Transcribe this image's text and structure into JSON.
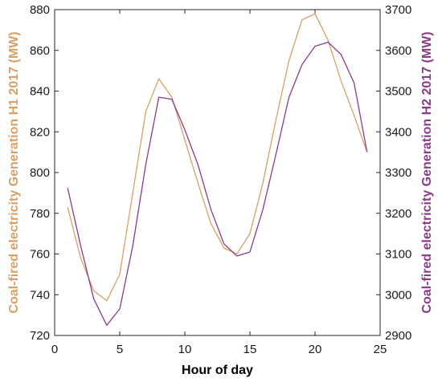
{
  "chart_data": {
    "type": "line",
    "xlabel": "Hour of day",
    "ylabel_left": "Coal-fired electricity Generation H1 2017 (MW)",
    "ylabel_right": "Coal-fired electricity Generation H2 2017 (MW)",
    "xlim": [
      0,
      25
    ],
    "ylim_left": [
      720,
      880
    ],
    "ylim_right": [
      2900,
      3700
    ],
    "xticks": [
      0,
      5,
      10,
      15,
      20,
      25
    ],
    "yticks_left": [
      720,
      740,
      760,
      780,
      800,
      820,
      840,
      860,
      880
    ],
    "yticks_right": [
      2900,
      3000,
      3100,
      3200,
      3300,
      3400,
      3500,
      3600,
      3700
    ],
    "grid": false,
    "legend": "none",
    "x": [
      1,
      2,
      3,
      4,
      5,
      6,
      7,
      8,
      9,
      10,
      11,
      12,
      13,
      14,
      15,
      16,
      17,
      18,
      19,
      20,
      21,
      22,
      23,
      24
    ],
    "series": [
      {
        "axis": "left",
        "color": "#D9A066",
        "values": [
          783,
          758,
          742,
          737,
          750,
          790,
          830,
          846,
          837,
          816,
          795,
          775,
          763,
          760,
          770,
          795,
          826,
          855,
          875,
          878,
          865,
          845,
          828,
          810
        ]
      },
      {
        "axis": "right",
        "color": "#8B3A8B",
        "values": [
          3262,
          3120,
          2990,
          2925,
          2965,
          3120,
          3320,
          3485,
          3480,
          3405,
          3320,
          3210,
          3125,
          3095,
          3105,
          3210,
          3345,
          3485,
          3565,
          3610,
          3620,
          3590,
          3520,
          3350
        ]
      }
    ]
  }
}
